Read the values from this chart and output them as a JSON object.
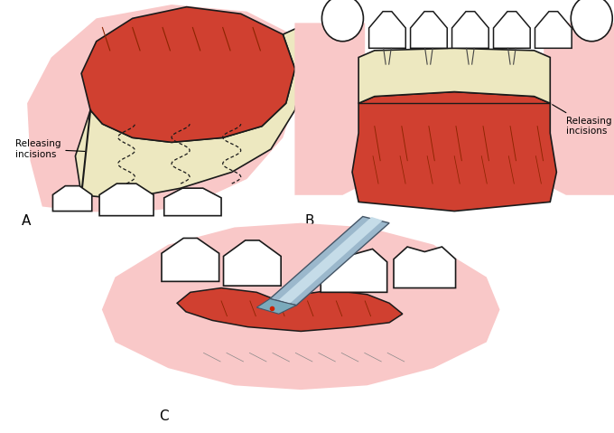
{
  "fig_width": 6.8,
  "fig_height": 4.79,
  "dpi": 100,
  "background": "#ffffff",
  "pink_gum_light": "#F9C8C8",
  "red_tissue": "#D04030",
  "cream_tissue": "#EDE8C0",
  "tooth_color": "#FFFFFF",
  "outline_color": "#1a1a1a",
  "instrument_color": "#9BB8CC",
  "label_A": "A",
  "label_B": "B",
  "label_C": "C",
  "annotation_A": "Releasing\nincisions",
  "annotation_B": "Releasing\nincisions"
}
